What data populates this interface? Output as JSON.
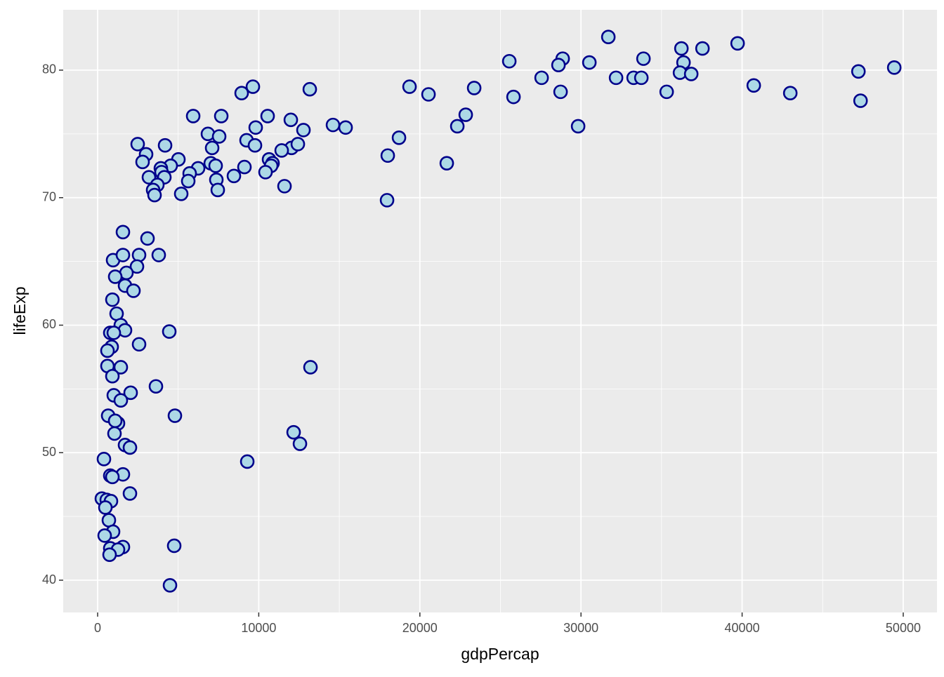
{
  "chart_data": {
    "type": "scatter",
    "x_label": "gdpPercap",
    "y_label": "lifeExp",
    "xlim": [
      -2136,
      52094
    ],
    "ylim": [
      37.47,
      84.73
    ],
    "xticks": [
      0,
      10000,
      20000,
      30000,
      40000,
      50000
    ],
    "yticks": [
      40,
      50,
      60,
      70,
      80
    ],
    "grid": true,
    "color": "#ADD8E6",
    "edge_color": "#00008B",
    "x": [
      31697,
      39720,
      36232,
      37540,
      33877,
      28863,
      25550,
      30520,
      28602,
      36362,
      49442,
      47219,
      36144,
      36842,
      33267,
      33746,
      32177,
      27555,
      40722,
      19358,
      9636,
      23370,
      13167,
      8938,
      42990,
      35316,
      28732,
      20536,
      25811,
      47350,
      5930,
      7674,
      10551,
      11990,
      22846,
      14606,
      15391,
      22323,
      29822,
      9810,
      12775,
      6845,
      7543,
      18704,
      9243,
      2485,
      4186,
      7107,
      9766,
      12034,
      12426,
      11423,
      3008,
      18007,
      5014,
      10638,
      2790,
      7020,
      10856,
      21669,
      4534,
      7325,
      3924,
      6235,
      9112,
      10769,
      10420,
      3968,
      5712,
      8458,
      3183,
      4142,
      5624,
      7368,
      3706,
      11598,
      3444,
      7456,
      3532,
      5188,
      17963,
      1570,
      3096,
      959,
      1570,
      2572,
      3793,
      2442,
      1788,
      1090,
      1700,
      2224,
      916,
      1177,
      1439,
      1700,
      4447,
      785,
      1003,
      2572,
      872,
      610,
      610,
      1439,
      13211,
      916,
      3619,
      2049,
      1003,
      1439,
      654,
      4796,
      1264,
      1090,
      1046,
      12164,
      12557,
      1700,
      2006,
      392,
      9287,
      1570,
      785,
      916,
      2006,
      262,
      567,
      828,
      480,
      698,
      959,
      436,
      4752,
      1570,
      785,
      1264,
      741,
      4491
    ],
    "y": [
      82.6,
      82.1,
      81.7,
      81.7,
      80.9,
      80.9,
      80.7,
      80.6,
      80.4,
      80.6,
      80.2,
      79.9,
      79.8,
      79.7,
      79.4,
      79.4,
      79.4,
      79.4,
      78.8,
      78.7,
      78.7,
      78.6,
      78.5,
      78.2,
      78.2,
      78.3,
      78.3,
      78.1,
      77.9,
      77.6,
      76.4,
      76.4,
      76.4,
      76.1,
      76.5,
      75.7,
      75.5,
      75.6,
      75.6,
      75.5,
      75.3,
      75.0,
      74.8,
      74.7,
      74.5,
      74.2,
      74.1,
      73.9,
      74.1,
      73.9,
      74.2,
      73.7,
      73.4,
      73.3,
      73.0,
      73.0,
      72.8,
      72.7,
      72.7,
      72.7,
      72.5,
      72.5,
      72.3,
      72.3,
      72.4,
      72.5,
      72.0,
      72.0,
      71.9,
      71.7,
      71.6,
      71.6,
      71.3,
      71.4,
      71.0,
      70.9,
      70.6,
      70.6,
      70.2,
      70.3,
      69.8,
      67.3,
      66.8,
      65.1,
      65.5,
      65.5,
      65.5,
      64.6,
      64.1,
      63.8,
      63.1,
      62.7,
      62.0,
      60.9,
      60.0,
      59.6,
      59.5,
      59.4,
      59.4,
      58.5,
      58.3,
      58.0,
      56.8,
      56.7,
      56.7,
      56.0,
      55.2,
      54.7,
      54.5,
      54.1,
      52.9,
      52.9,
      52.3,
      52.5,
      51.5,
      51.6,
      50.7,
      50.6,
      50.4,
      49.5,
      49.3,
      48.3,
      48.2,
      48.1,
      46.8,
      46.4,
      46.3,
      46.2,
      45.7,
      44.7,
      43.8,
      43.5,
      42.7,
      42.6,
      42.5,
      42.4,
      42.0,
      39.6
    ]
  }
}
